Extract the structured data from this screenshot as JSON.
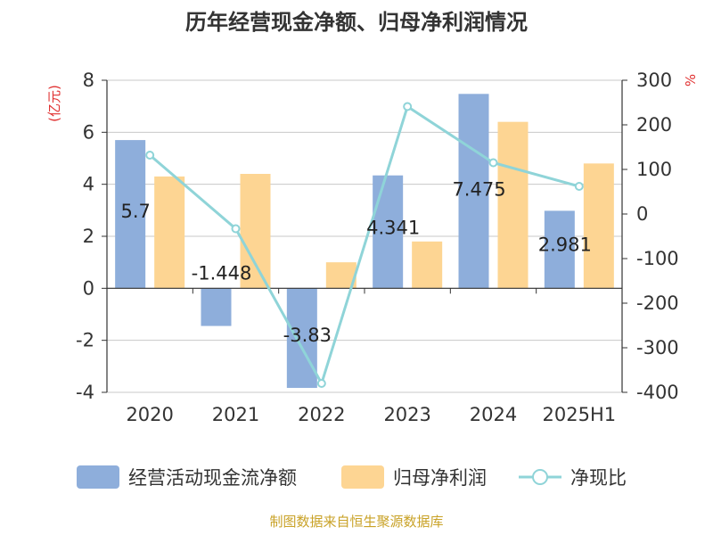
{
  "chart_data": {
    "type": "bar+line",
    "title": "历年经营现金净额、归母净利润情况",
    "categories": [
      "2020",
      "2021",
      "2022",
      "2023",
      "2024",
      "2025H1"
    ],
    "series": [
      {
        "name": "经营活动现金流净额",
        "type": "bar",
        "axis": "left",
        "color": "#8eaedb",
        "values": [
          5.7,
          -1.448,
          -3.83,
          4.341,
          7.475,
          2.981
        ],
        "labels": [
          "5.7",
          "-1.448",
          "-3.83",
          "4.341",
          "7.475",
          "2.981"
        ]
      },
      {
        "name": "归母净利润",
        "type": "bar",
        "axis": "left",
        "color": "#fdd593",
        "values": [
          4.3,
          4.4,
          1.0,
          1.8,
          6.4,
          4.8
        ]
      },
      {
        "name": "净现比",
        "type": "line",
        "axis": "right",
        "color": "#8fd4d8",
        "values": [
          132,
          -33,
          -380,
          241,
          115,
          62
        ]
      }
    ],
    "y_left": {
      "unit_label": "(亿元)",
      "range": [
        -4,
        8
      ],
      "ticks": [
        8,
        6,
        4,
        2,
        0,
        -2,
        -4
      ]
    },
    "y_right": {
      "unit_label": "%",
      "range": [
        -400,
        300
      ],
      "ticks": [
        300,
        200,
        100,
        0,
        -100,
        -200,
        -300,
        -400
      ]
    },
    "grid": true,
    "legend_position": "bottom"
  },
  "footer": "制图数据来自恒生聚源数据库"
}
